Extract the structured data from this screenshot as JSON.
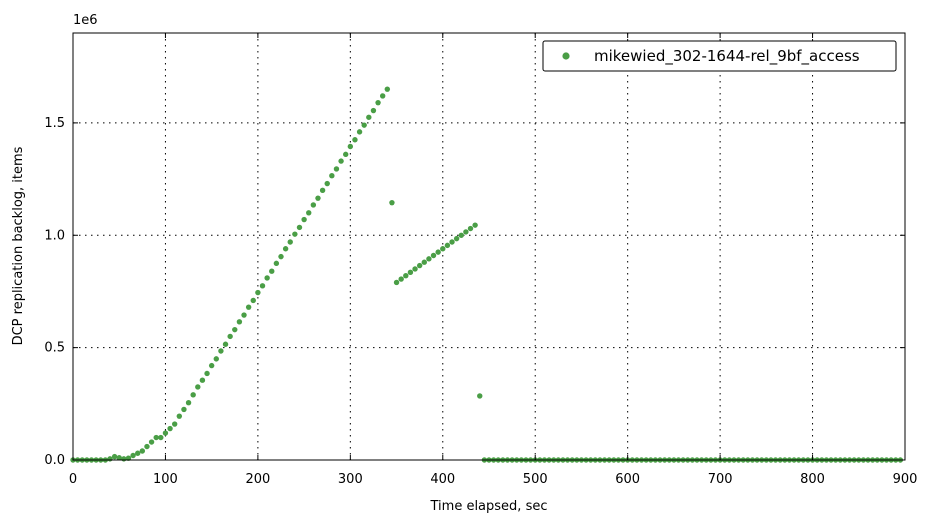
{
  "chart_data": {
    "type": "scatter",
    "xlabel": "Time elapsed, sec",
    "ylabel": "DCP replication backlog, items",
    "y_offset_label": "1e6",
    "xlim": [
      0,
      900
    ],
    "ylim": [
      0,
      1900000
    ],
    "x_ticks": [
      0,
      100,
      200,
      300,
      400,
      500,
      600,
      700,
      800,
      900
    ],
    "x_tick_labels": [
      "0",
      "100",
      "200",
      "300",
      "400",
      "500",
      "600",
      "700",
      "800",
      "900"
    ],
    "y_ticks": [
      0,
      500000,
      1000000,
      1500000
    ],
    "y_tick_labels": [
      "0.0",
      "0.5",
      "1.0",
      "1.5"
    ],
    "grid": true,
    "legend_position": "top-right",
    "series": [
      {
        "name": "mikewied_302-1644-rel_9bf_access",
        "color": "#4a9e46",
        "points": [
          [
            0,
            0
          ],
          [
            5,
            0
          ],
          [
            10,
            0
          ],
          [
            15,
            0
          ],
          [
            20,
            0
          ],
          [
            25,
            0
          ],
          [
            30,
            0
          ],
          [
            35,
            0
          ],
          [
            40,
            5000
          ],
          [
            45,
            15000
          ],
          [
            50,
            10000
          ],
          [
            55,
            5000
          ],
          [
            60,
            8000
          ],
          [
            65,
            20000
          ],
          [
            70,
            30000
          ],
          [
            75,
            40000
          ],
          [
            80,
            60000
          ],
          [
            85,
            80000
          ],
          [
            90,
            100000
          ],
          [
            95,
            100000
          ],
          [
            100,
            120000
          ],
          [
            105,
            140000
          ],
          [
            110,
            160000
          ],
          [
            115,
            195000
          ],
          [
            120,
            225000
          ],
          [
            125,
            255000
          ],
          [
            130,
            290000
          ],
          [
            135,
            325000
          ],
          [
            140,
            355000
          ],
          [
            145,
            385000
          ],
          [
            150,
            420000
          ],
          [
            155,
            450000
          ],
          [
            160,
            485000
          ],
          [
            165,
            515000
          ],
          [
            170,
            550000
          ],
          [
            175,
            580000
          ],
          [
            180,
            615000
          ],
          [
            185,
            645000
          ],
          [
            190,
            680000
          ],
          [
            195,
            710000
          ],
          [
            200,
            745000
          ],
          [
            205,
            775000
          ],
          [
            210,
            810000
          ],
          [
            215,
            840000
          ],
          [
            220,
            875000
          ],
          [
            225,
            905000
          ],
          [
            230,
            940000
          ],
          [
            235,
            970000
          ],
          [
            240,
            1005000
          ],
          [
            245,
            1035000
          ],
          [
            250,
            1070000
          ],
          [
            255,
            1100000
          ],
          [
            260,
            1135000
          ],
          [
            265,
            1165000
          ],
          [
            270,
            1200000
          ],
          [
            275,
            1230000
          ],
          [
            280,
            1265000
          ],
          [
            285,
            1295000
          ],
          [
            290,
            1330000
          ],
          [
            295,
            1360000
          ],
          [
            300,
            1395000
          ],
          [
            305,
            1425000
          ],
          [
            310,
            1460000
          ],
          [
            315,
            1490000
          ],
          [
            320,
            1525000
          ],
          [
            325,
            1555000
          ],
          [
            330,
            1590000
          ],
          [
            335,
            1620000
          ],
          [
            340,
            1650000
          ],
          [
            345,
            1145000
          ],
          [
            350,
            790000
          ],
          [
            355,
            805000
          ],
          [
            360,
            820000
          ],
          [
            365,
            835000
          ],
          [
            370,
            850000
          ],
          [
            375,
            865000
          ],
          [
            380,
            880000
          ],
          [
            385,
            895000
          ],
          [
            390,
            910000
          ],
          [
            395,
            925000
          ],
          [
            400,
            940000
          ],
          [
            405,
            955000
          ],
          [
            410,
            970000
          ],
          [
            415,
            985000
          ],
          [
            420,
            1000000
          ],
          [
            425,
            1015000
          ],
          [
            430,
            1030000
          ],
          [
            435,
            1045000
          ],
          [
            440,
            285000
          ],
          [
            445,
            0
          ],
          [
            450,
            0
          ],
          [
            455,
            0
          ],
          [
            460,
            0
          ],
          [
            465,
            0
          ],
          [
            470,
            0
          ],
          [
            475,
            0
          ],
          [
            480,
            0
          ],
          [
            485,
            0
          ],
          [
            490,
            0
          ],
          [
            495,
            0
          ],
          [
            500,
            0
          ],
          [
            505,
            0
          ],
          [
            510,
            0
          ],
          [
            515,
            0
          ],
          [
            520,
            0
          ],
          [
            525,
            0
          ],
          [
            530,
            0
          ],
          [
            535,
            0
          ],
          [
            540,
            0
          ],
          [
            545,
            0
          ],
          [
            550,
            0
          ],
          [
            555,
            0
          ],
          [
            560,
            0
          ],
          [
            565,
            0
          ],
          [
            570,
            0
          ],
          [
            575,
            0
          ],
          [
            580,
            0
          ],
          [
            585,
            0
          ],
          [
            590,
            0
          ],
          [
            595,
            0
          ],
          [
            600,
            0
          ],
          [
            605,
            0
          ],
          [
            610,
            0
          ],
          [
            615,
            0
          ],
          [
            620,
            0
          ],
          [
            625,
            0
          ],
          [
            630,
            0
          ],
          [
            635,
            0
          ],
          [
            640,
            0
          ],
          [
            645,
            0
          ],
          [
            650,
            0
          ],
          [
            655,
            0
          ],
          [
            660,
            0
          ],
          [
            665,
            0
          ],
          [
            670,
            0
          ],
          [
            675,
            0
          ],
          [
            680,
            0
          ],
          [
            685,
            0
          ],
          [
            690,
            0
          ],
          [
            695,
            0
          ],
          [
            700,
            0
          ],
          [
            705,
            0
          ],
          [
            710,
            0
          ],
          [
            715,
            0
          ],
          [
            720,
            0
          ],
          [
            725,
            0
          ],
          [
            730,
            0
          ],
          [
            735,
            0
          ],
          [
            740,
            0
          ],
          [
            745,
            0
          ],
          [
            750,
            0
          ],
          [
            755,
            0
          ],
          [
            760,
            0
          ],
          [
            765,
            0
          ],
          [
            770,
            0
          ],
          [
            775,
            0
          ],
          [
            780,
            0
          ],
          [
            785,
            0
          ],
          [
            790,
            0
          ],
          [
            795,
            0
          ],
          [
            800,
            0
          ],
          [
            805,
            0
          ],
          [
            810,
            0
          ],
          [
            815,
            0
          ],
          [
            820,
            0
          ],
          [
            825,
            0
          ],
          [
            830,
            0
          ],
          [
            835,
            0
          ],
          [
            840,
            0
          ],
          [
            845,
            0
          ],
          [
            850,
            0
          ],
          [
            855,
            0
          ],
          [
            860,
            0
          ],
          [
            865,
            0
          ],
          [
            870,
            0
          ],
          [
            875,
            0
          ],
          [
            880,
            0
          ],
          [
            885,
            0
          ],
          [
            890,
            0
          ],
          [
            895,
            0
          ]
        ]
      }
    ]
  }
}
